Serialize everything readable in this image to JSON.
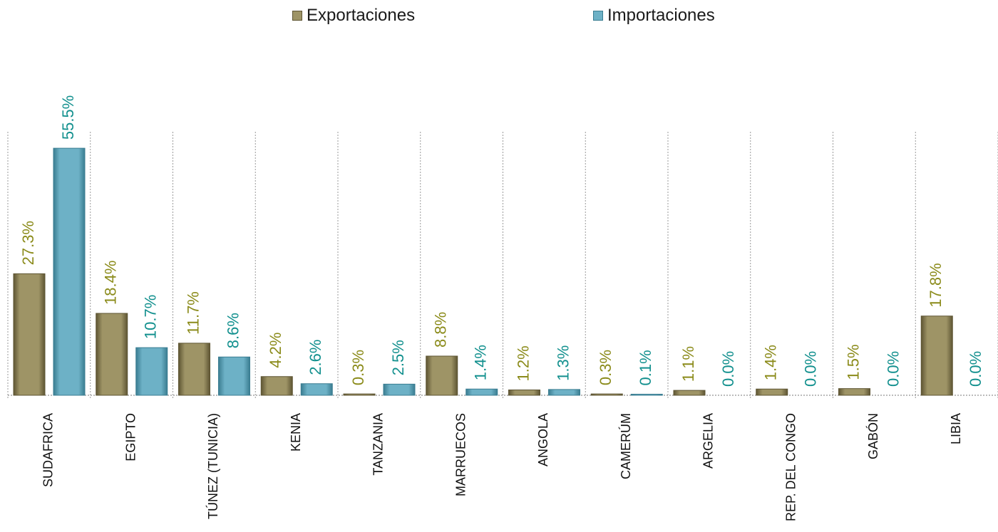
{
  "legend": {
    "export_label": "Exportaciones",
    "import_label": "Importaciones"
  },
  "colors": {
    "exports": "#9E9466",
    "exports_dark": "#5e5533",
    "exports_label": "#8B8B1A",
    "imports": "#6DB1C6",
    "imports_dark": "#3a7d91",
    "imports_label": "#12908E",
    "gridline": "#9a9a9a"
  },
  "chart_data": {
    "type": "bar",
    "categories": [
      "SUDAFRICA",
      "EGIPTO",
      "TÚNEZ (TUNICIA)",
      "KENIA",
      "TANZANIA",
      "MARRUECOS",
      "ANGOLA",
      "CAMERÚM",
      "ARGELIA",
      "REP. DEL CONGO",
      "GABÓN",
      "LIBIA"
    ],
    "series": [
      {
        "name": "Exportaciones",
        "values": [
          27.3,
          18.4,
          11.7,
          4.2,
          0.3,
          8.8,
          1.2,
          0.3,
          1.1,
          1.4,
          1.5,
          17.8
        ],
        "labels": [
          "27.3%",
          "18.4%",
          "11.7%",
          "4.2%",
          "0.3%",
          "8.8%",
          "1.2%",
          "0.3%",
          "1.1%",
          "1.4%",
          "1.5%",
          "17.8%"
        ]
      },
      {
        "name": "Importaciones",
        "values": [
          55.5,
          10.7,
          8.6,
          2.6,
          2.5,
          1.4,
          1.3,
          0.1,
          0.0,
          0.0,
          0.0,
          0.0
        ],
        "labels": [
          "55.5%",
          "10.7%",
          "8.6%",
          "2.6%",
          "2.5%",
          "1.4%",
          "1.3%",
          "0.1%",
          "0.0%",
          "0.0%",
          "0.0%",
          "0.0%"
        ]
      }
    ],
    "ylim": [
      0,
      60
    ],
    "grid": "vertical dotted separators",
    "legend_position": "top"
  }
}
